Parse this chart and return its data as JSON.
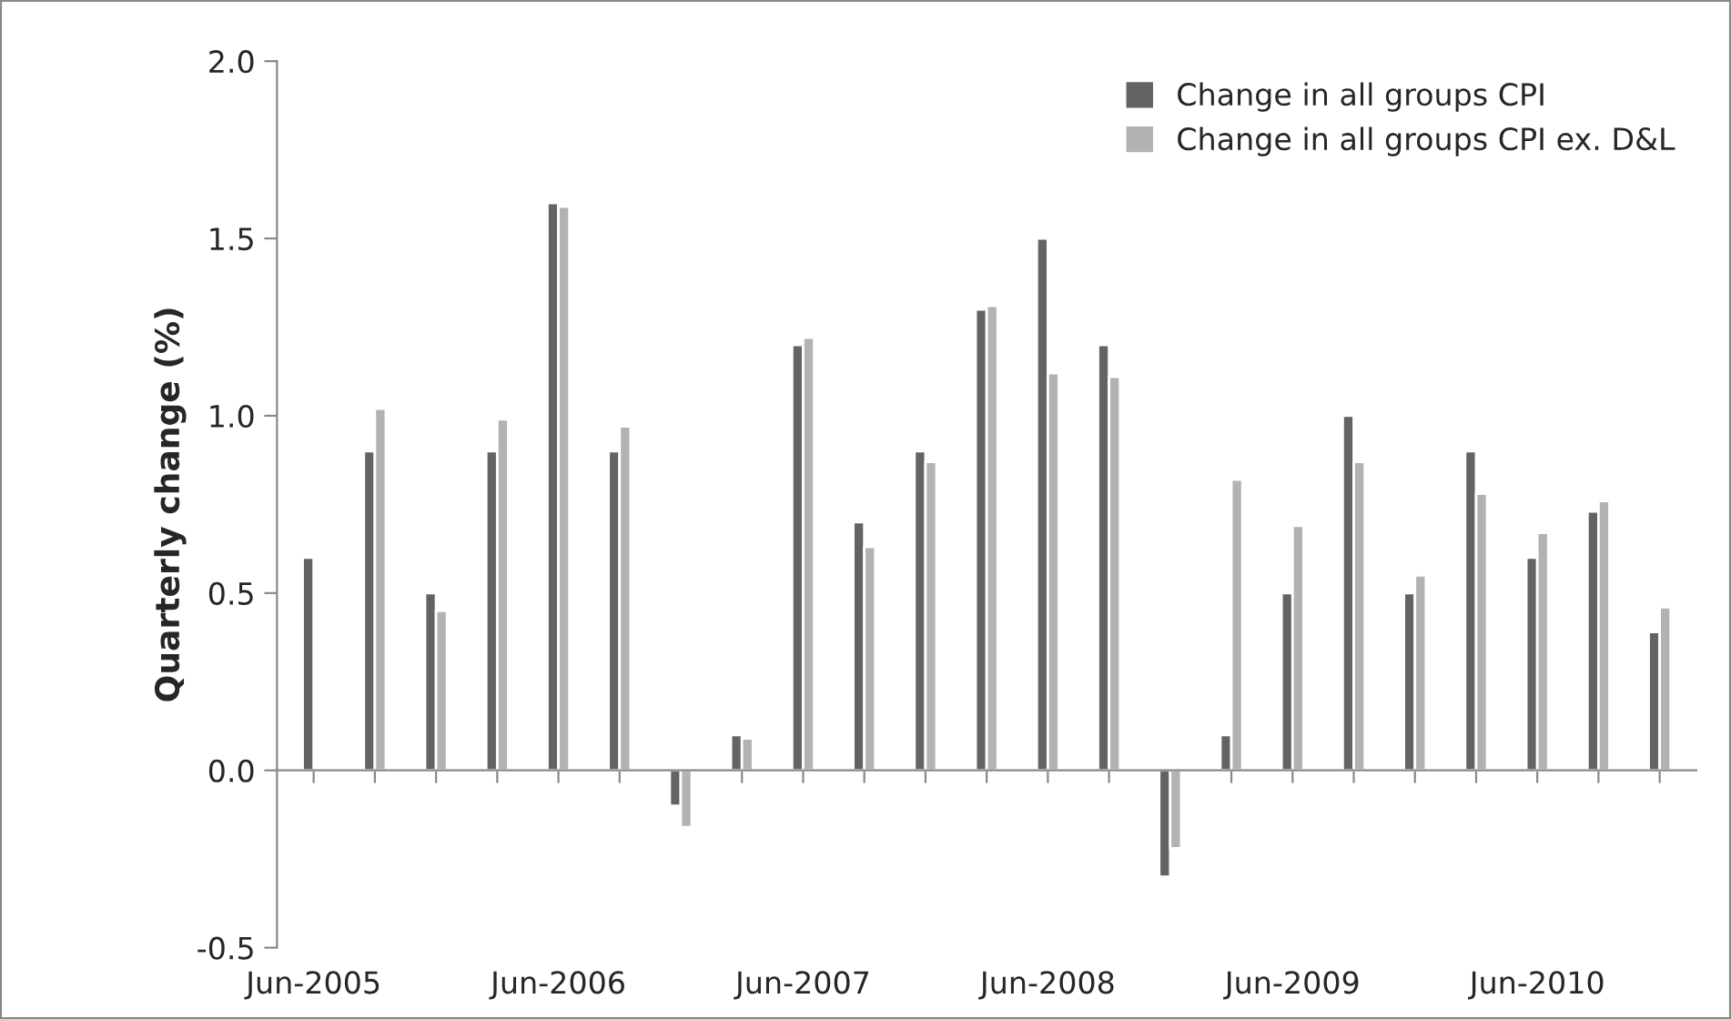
{
  "chart_data": {
    "type": "bar",
    "ylabel": "Quarterly change (%)",
    "categories": [
      "Jun-2005",
      null,
      null,
      null,
      "Jun-2006",
      null,
      null,
      null,
      "Jun-2007",
      null,
      null,
      null,
      "Jun-2008",
      null,
      null,
      null,
      "Jun-2009",
      null,
      null,
      null,
      "Jun-2010",
      null,
      null
    ],
    "series": [
      {
        "name": "Change in all groups CPI",
        "color": "#636363",
        "values": [
          0.6,
          0.9,
          0.5,
          0.9,
          1.6,
          0.9,
          -0.1,
          0.1,
          1.2,
          0.7,
          0.9,
          1.3,
          1.5,
          1.2,
          -0.3,
          0.1,
          0.5,
          1.0,
          0.5,
          0.9,
          0.6,
          0.73,
          0.39
        ]
      },
      {
        "name": "Change in all groups CPI ex. D&L",
        "color": "#b2b2b2",
        "values": [
          null,
          1.02,
          0.45,
          0.99,
          1.59,
          0.97,
          -0.16,
          0.09,
          1.22,
          0.63,
          0.87,
          1.31,
          1.12,
          1.11,
          -0.22,
          0.82,
          0.69,
          0.87,
          0.55,
          0.78,
          0.67,
          0.76,
          0.46
        ]
      }
    ],
    "ylim": [
      -0.5,
      2.0
    ],
    "yticks": [
      {
        "value": -0.5,
        "label": "-0.5"
      },
      {
        "value": 0,
        "label": "0.0"
      },
      {
        "value": 0.5,
        "label": "0.5"
      },
      {
        "value": 1.0,
        "label": "1.0"
      },
      {
        "value": 1.5,
        "label": "1.5"
      },
      {
        "value": 2.0,
        "label": "2.0"
      }
    ],
    "legend": "top right"
  }
}
